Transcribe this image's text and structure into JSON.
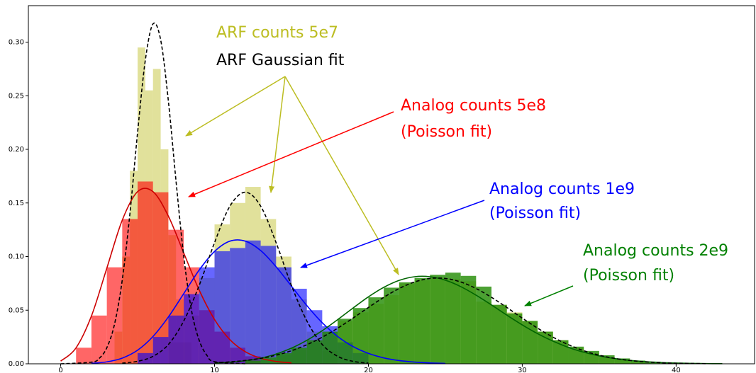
{
  "chart_data": {
    "type": "histogram",
    "xlim": [
      -2.1,
      45.1
    ],
    "ylim": [
      0,
      0.334
    ],
    "xticks": [
      0,
      10,
      20,
      30,
      40
    ],
    "yticks": [
      {
        "value": 0,
        "label": "0.00"
      },
      {
        "value": 0.05,
        "label": "0.05"
      },
      {
        "value": 0.1,
        "label": "0.10"
      },
      {
        "value": 0.15,
        "label": "0.15"
      },
      {
        "value": 0.2,
        "label": "0.20"
      },
      {
        "value": 0.25,
        "label": "0.25"
      },
      {
        "value": 0.3,
        "label": "0.30"
      }
    ],
    "histograms": [
      {
        "color": "#bcbd22",
        "bins": [
          3.5,
          4,
          4.5,
          5,
          5.5,
          6,
          6.5,
          7,
          7.5,
          8,
          8.5
        ],
        "values": [
          0.03,
          0.1,
          0.18,
          0.295,
          0.255,
          0.275,
          0.2,
          0.12,
          0.06,
          0.02
        ]
      },
      {
        "color": "#bcbd22",
        "bins": [
          7,
          8,
          9,
          10,
          11,
          12,
          13,
          14,
          15,
          16,
          17,
          18
        ],
        "values": [
          0.02,
          0.045,
          0.08,
          0.13,
          0.15,
          0.165,
          0.135,
          0.1,
          0.06,
          0.03,
          0.012
        ]
      },
      {
        "color": "#bcbd22",
        "bins": [
          14,
          15,
          16,
          17,
          18,
          19,
          20,
          21,
          22,
          23,
          24,
          25,
          26,
          27,
          28,
          29,
          30,
          31,
          32,
          33,
          34,
          35,
          36,
          37,
          38
        ],
        "values": [
          0.008,
          0.013,
          0.02,
          0.03,
          0.04,
          0.048,
          0.056,
          0.064,
          0.075,
          0.078,
          0.08,
          0.079,
          0.077,
          0.058,
          0.055,
          0.048,
          0.04,
          0.03,
          0.022,
          0.015,
          0.01,
          0.006,
          0.004,
          0.002
        ]
      },
      {
        "color": "#ff0000",
        "bins": [
          1,
          2,
          3,
          4,
          5,
          6,
          7,
          8,
          9,
          10,
          11,
          12,
          13
        ],
        "values": [
          0.015,
          0.045,
          0.09,
          0.135,
          0.17,
          0.16,
          0.125,
          0.09,
          0.05,
          0.03,
          0.015,
          0.007
        ]
      },
      {
        "color": "#0000ff",
        "bins": [
          5,
          6,
          7,
          8,
          9,
          10,
          11,
          12,
          13,
          14,
          15,
          16,
          17,
          18,
          19,
          20
        ],
        "values": [
          0.01,
          0.025,
          0.045,
          0.065,
          0.09,
          0.105,
          0.108,
          0.115,
          0.11,
          0.09,
          0.07,
          0.05,
          0.035,
          0.02,
          0.01
        ]
      },
      {
        "color": "#1f8a00",
        "bins": [
          12,
          13,
          14,
          15,
          16,
          17,
          18,
          19,
          20,
          21,
          22,
          23,
          24,
          25,
          26,
          27,
          28,
          29,
          30,
          31,
          32,
          33,
          34,
          35,
          36,
          37,
          38,
          39,
          40,
          41,
          42,
          43,
          44
        ],
        "values": [
          0.003,
          0.006,
          0.01,
          0.015,
          0.022,
          0.03,
          0.042,
          0.052,
          0.062,
          0.071,
          0.076,
          0.08,
          0.083,
          0.085,
          0.082,
          0.072,
          0.055,
          0.047,
          0.04,
          0.03,
          0.022,
          0.016,
          0.012,
          0.008,
          0.005,
          0.003,
          0.002,
          0.001,
          0.0005,
          0.0003,
          0.0001,
          0.0001
        ]
      }
    ],
    "fits": [
      {
        "color": "#cc0000",
        "dashed": false,
        "x": [
          0,
          1,
          2,
          3,
          4,
          5,
          6,
          7,
          8,
          9,
          10,
          11,
          12,
          13,
          14,
          15
        ],
        "values": [
          0.0025,
          0.0149,
          0.0446,
          0.0892,
          0.1339,
          0.1606,
          0.1606,
          0.1377,
          0.1033,
          0.0688,
          0.0413,
          0.0225,
          0.0113,
          0.0052,
          0.0022,
          0.0009
        ]
      },
      {
        "color": "#0000ff",
        "dashed": false,
        "x": [
          2,
          3,
          4,
          5,
          6,
          7,
          8,
          9,
          10,
          11,
          12,
          13,
          14,
          15,
          16,
          17,
          18,
          19,
          20,
          21,
          22,
          23,
          24,
          25
        ],
        "values": [
          0.0004,
          0.0018,
          0.0053,
          0.0127,
          0.0255,
          0.0437,
          0.0655,
          0.0874,
          0.1048,
          0.1144,
          0.1144,
          0.1056,
          0.0905,
          0.0724,
          0.0543,
          0.0383,
          0.0255,
          0.0161,
          0.0097,
          0.0055,
          0.003,
          0.0016,
          0.0008,
          0.0004
        ]
      },
      {
        "color": "#006400",
        "dashed": false,
        "x": [
          10,
          11,
          12,
          13,
          14,
          15,
          16,
          17,
          18,
          19,
          20,
          21,
          22,
          23,
          24,
          25,
          26,
          27,
          28,
          29,
          30,
          31,
          32,
          33,
          34,
          35,
          36,
          37,
          38,
          39,
          40,
          41,
          42,
          43
        ],
        "values": [
          0.0007,
          0.0015,
          0.0029,
          0.0053,
          0.0091,
          0.0146,
          0.0219,
          0.0309,
          0.0412,
          0.052,
          0.0624,
          0.0713,
          0.0778,
          0.0812,
          0.0812,
          0.078,
          0.072,
          0.064,
          0.0549,
          0.0454,
          0.0363,
          0.0281,
          0.0211,
          0.0153,
          0.0108,
          0.0074,
          0.0049,
          0.0032,
          0.002,
          0.0012,
          0.0007,
          0.0004,
          0.0002,
          0.0001
        ]
      },
      {
        "color": "#000000",
        "dashed": true,
        "x": [
          0,
          2,
          2.5,
          3,
          3.5,
          4,
          4.5,
          5,
          5.5,
          6,
          6.5,
          7,
          7.5,
          8,
          8.5,
          9,
          9.5,
          10,
          12
        ],
        "values": [
          0,
          0.0015,
          0.005,
          0.015,
          0.037,
          0.078,
          0.14,
          0.216,
          0.283,
          0.317,
          0.302,
          0.245,
          0.17,
          0.1,
          0.05,
          0.022,
          0.008,
          0.002,
          0
        ]
      },
      {
        "color": "#000000",
        "dashed": true,
        "x": [
          4,
          5,
          6,
          7,
          8,
          9,
          10,
          11,
          12,
          13,
          14,
          15,
          16,
          17,
          18,
          19,
          20
        ],
        "values": [
          0.0006,
          0.0023,
          0.007,
          0.018,
          0.04,
          0.073,
          0.113,
          0.147,
          0.16,
          0.147,
          0.113,
          0.073,
          0.04,
          0.018,
          0.007,
          0.0023,
          0.0006
        ]
      },
      {
        "color": "#000000",
        "dashed": true,
        "x": [
          10,
          11,
          12,
          13,
          14,
          15,
          16,
          17,
          18,
          19,
          20,
          21,
          22,
          23,
          24,
          25,
          26,
          27,
          28,
          29,
          30,
          31,
          32,
          33,
          34,
          35,
          36,
          37,
          38,
          39,
          40,
          41,
          42
        ],
        "values": [
          0.001,
          0.0018,
          0.0031,
          0.0051,
          0.008,
          0.0122,
          0.0178,
          0.0248,
          0.0332,
          0.0426,
          0.0525,
          0.062,
          0.0702,
          0.0763,
          0.0796,
          0.0796,
          0.0763,
          0.0702,
          0.062,
          0.0525,
          0.0426,
          0.0332,
          0.0248,
          0.0178,
          0.0122,
          0.008,
          0.0051,
          0.0031,
          0.0018,
          0.001,
          0.0005,
          0.0003,
          0.0001
        ]
      }
    ],
    "annotations": [
      {
        "text": "ARF counts 5e7",
        "color": "#bcbd22"
      },
      {
        "text": "ARF Gaussian fit",
        "color": "#000000"
      },
      {
        "text": "Analog counts 5e8",
        "color": "#ff0000"
      },
      {
        "text": "(Poisson fit)",
        "color": "#ff0000"
      },
      {
        "text": "Analog counts 1e9",
        "color": "#0000ff"
      },
      {
        "text": "(Poisson fit)",
        "color": "#0000ff"
      },
      {
        "text": "Analog counts 2e9",
        "color": "#008000"
      },
      {
        "text": "(Poisson fit)",
        "color": "#008000"
      }
    ]
  }
}
